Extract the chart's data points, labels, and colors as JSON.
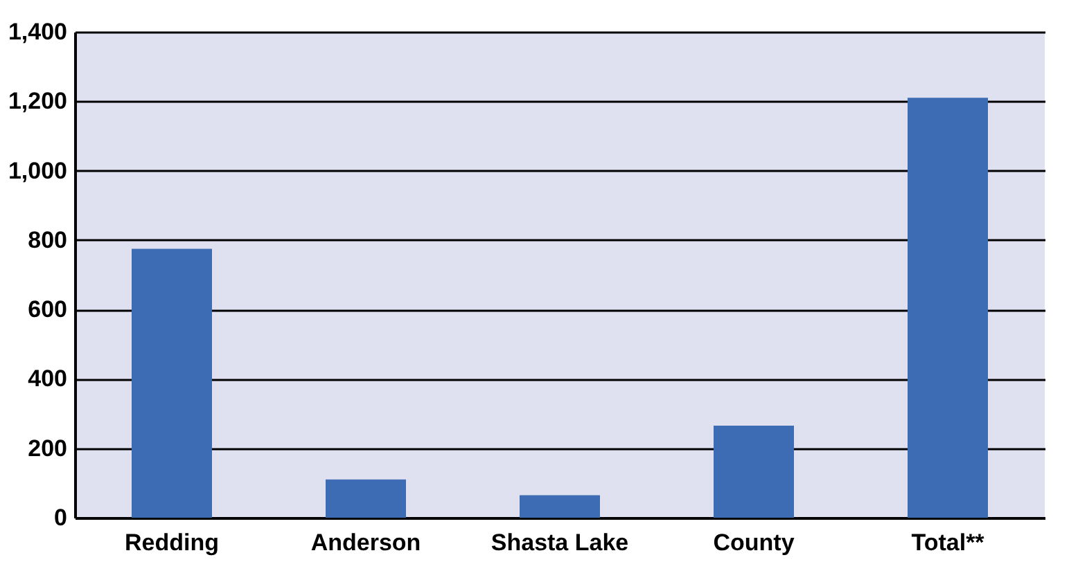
{
  "chart_data": {
    "type": "bar",
    "categories": [
      "Redding",
      "Anderson",
      "Shasta Lake",
      "County",
      "Total**"
    ],
    "values": [
      775,
      110,
      65,
      265,
      1210
    ],
    "color": "#3d6cb4",
    "ylim": [
      0,
      1400
    ],
    "yticks": [
      0,
      200,
      400,
      600,
      800,
      {
        "value": 1000,
        "label": "1,000"
      },
      {
        "value": 1200,
        "label": "1,200"
      },
      {
        "value": 1400,
        "label": "1,400"
      }
    ],
    "grid": "y"
  }
}
